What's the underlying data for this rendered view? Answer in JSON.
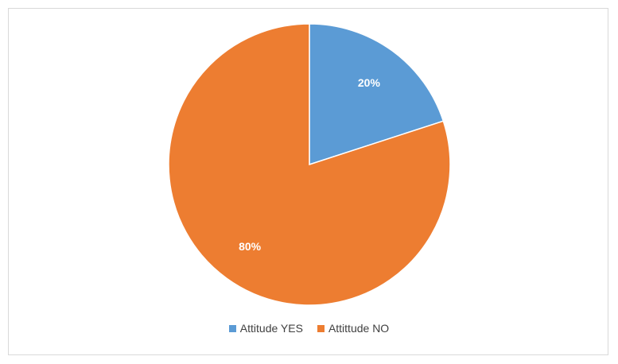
{
  "chart_data": {
    "type": "pie",
    "title": "",
    "series": [
      {
        "name": "",
        "labels": [
          "Attitude YES",
          "Attittude NO"
        ],
        "values": [
          20,
          80
        ],
        "data_labels": [
          "20%",
          "80%"
        ],
        "colors": [
          "#5b9bd5",
          "#ed7d31"
        ]
      }
    ],
    "start_angle_deg": 0,
    "direction": "clockwise",
    "legend_position": "bottom",
    "slice_border_color": "#ffffff"
  }
}
